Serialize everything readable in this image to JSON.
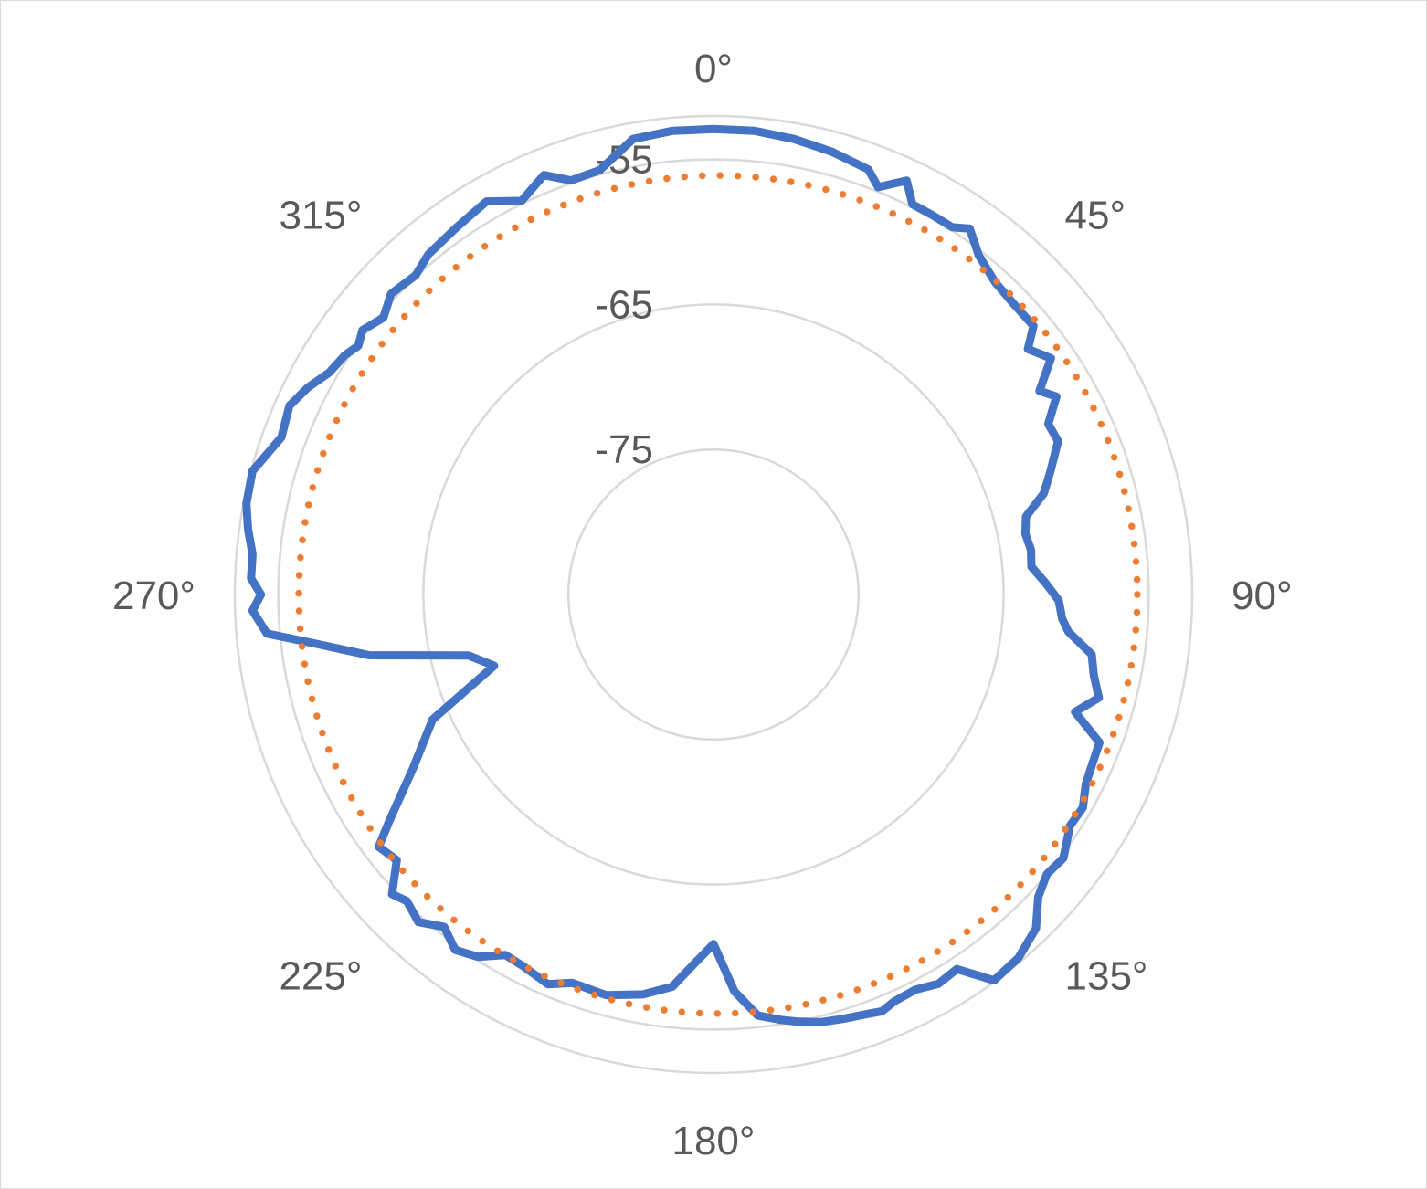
{
  "chart_data": {
    "type": "polar-line",
    "title": "",
    "angle_unit": "degrees",
    "angle_direction": "clockwise",
    "angle_zero": "top",
    "radial_ticks": [
      -55,
      -65,
      -75
    ],
    "radial_axis_max": -52,
    "radial_axis_min": -85,
    "radial_tick_labels": [
      "-55",
      "-65",
      "-75"
    ],
    "angle_labels": [
      "0°",
      "45°",
      "90°",
      "135°",
      "180°",
      "225°",
      "270°",
      "315°"
    ],
    "angle_label_values": [
      0,
      45,
      90,
      135,
      180,
      225,
      270,
      315
    ],
    "grid": true,
    "legend": "none",
    "series": [
      {
        "color": "#4472c4",
        "style": "solid",
        "points": [
          [
            0,
            -52.9
          ],
          [
            5,
            -52.9
          ],
          [
            10,
            -53.1
          ],
          [
            15,
            -53.4
          ],
          [
            20,
            -53.8
          ],
          [
            22,
            -54.7
          ],
          [
            25,
            -53.5
          ],
          [
            27,
            -54.8
          ],
          [
            30,
            -54.8
          ],
          [
            33,
            -54.8
          ],
          [
            35,
            -54.2
          ],
          [
            38,
            -55.3
          ],
          [
            42,
            -56.0
          ],
          [
            46,
            -56.2
          ],
          [
            50,
            -56.2
          ],
          [
            52,
            -57.5
          ],
          [
            55,
            -56.6
          ],
          [
            58,
            -58.5
          ],
          [
            60,
            -57.7
          ],
          [
            63,
            -59.1
          ],
          [
            66,
            -59.0
          ],
          [
            70,
            -60.3
          ],
          [
            73,
            -61.2
          ],
          [
            76,
            -62.8
          ],
          [
            79,
            -63.1
          ],
          [
            82,
            -62.9
          ],
          [
            85,
            -63.0
          ],
          [
            88,
            -62.1
          ],
          [
            91,
            -61.2
          ],
          [
            94,
            -60.9
          ],
          [
            96,
            -60.4
          ],
          [
            99,
            -58.6
          ],
          [
            102,
            -58.2
          ],
          [
            105,
            -57.5
          ],
          [
            108,
            -58.8
          ],
          [
            111,
            -56.5
          ],
          [
            114,
            -56.4
          ],
          [
            117,
            -56.2
          ],
          [
            120,
            -55.6
          ],
          [
            123,
            -55.7
          ],
          [
            127,
            -54.8
          ],
          [
            130,
            -55.0
          ],
          [
            133,
            -54.4
          ],
          [
            136,
            -53.0
          ],
          [
            140,
            -52.3
          ],
          [
            144,
            -52.1
          ],
          [
            147,
            -54.2
          ],
          [
            150,
            -54.0
          ],
          [
            153,
            -54.4
          ],
          [
            156,
            -54.3
          ],
          [
            158,
            -54.0
          ],
          [
            160,
            -54.2
          ],
          [
            163,
            -54.4
          ],
          [
            166,
            -54.6
          ],
          [
            169,
            -55.0
          ],
          [
            171,
            -55.3
          ],
          [
            174,
            -55.8
          ],
          [
            177,
            -57.6
          ],
          [
            180,
            -60.9
          ],
          [
            183,
            -59.5
          ],
          [
            186,
            -57.8
          ],
          [
            190,
            -57.0
          ],
          [
            195,
            -56.4
          ],
          [
            200,
            -56.5
          ],
          [
            203,
            -55.8
          ],
          [
            207,
            -56.2
          ],
          [
            210,
            -56.3
          ],
          [
            213,
            -55.2
          ],
          [
            216,
            -54.7
          ],
          [
            219,
            -55.5
          ],
          [
            222,
            -54.6
          ],
          [
            225,
            -55.1
          ],
          [
            227,
            -54.7
          ],
          [
            230,
            -56.5
          ],
          [
            233,
            -56.1
          ],
          [
            235,
            -57.7
          ],
          [
            240,
            -61.1
          ],
          [
            246,
            -63.8
          ],
          [
            252,
            -69.1
          ],
          [
            256,
            -67.6
          ],
          [
            260,
            -60.9
          ],
          [
            263,
            -57.3
          ],
          [
            265,
            -54.1
          ],
          [
            268,
            -53.2
          ],
          [
            270,
            -53.8
          ],
          [
            272,
            -53.1
          ],
          [
            275,
            -53.1
          ],
          [
            278,
            -52.6
          ],
          [
            281,
            -52.2
          ],
          [
            285,
            -52.1
          ],
          [
            290,
            -53.3
          ],
          [
            294,
            -53.0
          ],
          [
            297,
            -53.6
          ],
          [
            300,
            -54.4
          ],
          [
            303,
            -54.7
          ],
          [
            305,
            -55.1
          ],
          [
            307,
            -54.7
          ],
          [
            310,
            -55.3
          ],
          [
            313,
            -54.6
          ],
          [
            317,
            -54.9
          ],
          [
            320,
            -54.4
          ],
          [
            325,
            -54.1
          ],
          [
            330,
            -53.7
          ],
          [
            334,
            -54.8
          ],
          [
            338,
            -53.8
          ],
          [
            341,
            -54.8
          ],
          [
            345,
            -54.7
          ],
          [
            350,
            -53.1
          ],
          [
            355,
            -52.9
          ],
          [
            360,
            -52.9
          ]
        ]
      },
      {
        "color": "#ed7d31",
        "style": "dotted",
        "center": [
          5,
          -1.0
        ],
        "radius": -56.1
      }
    ]
  }
}
